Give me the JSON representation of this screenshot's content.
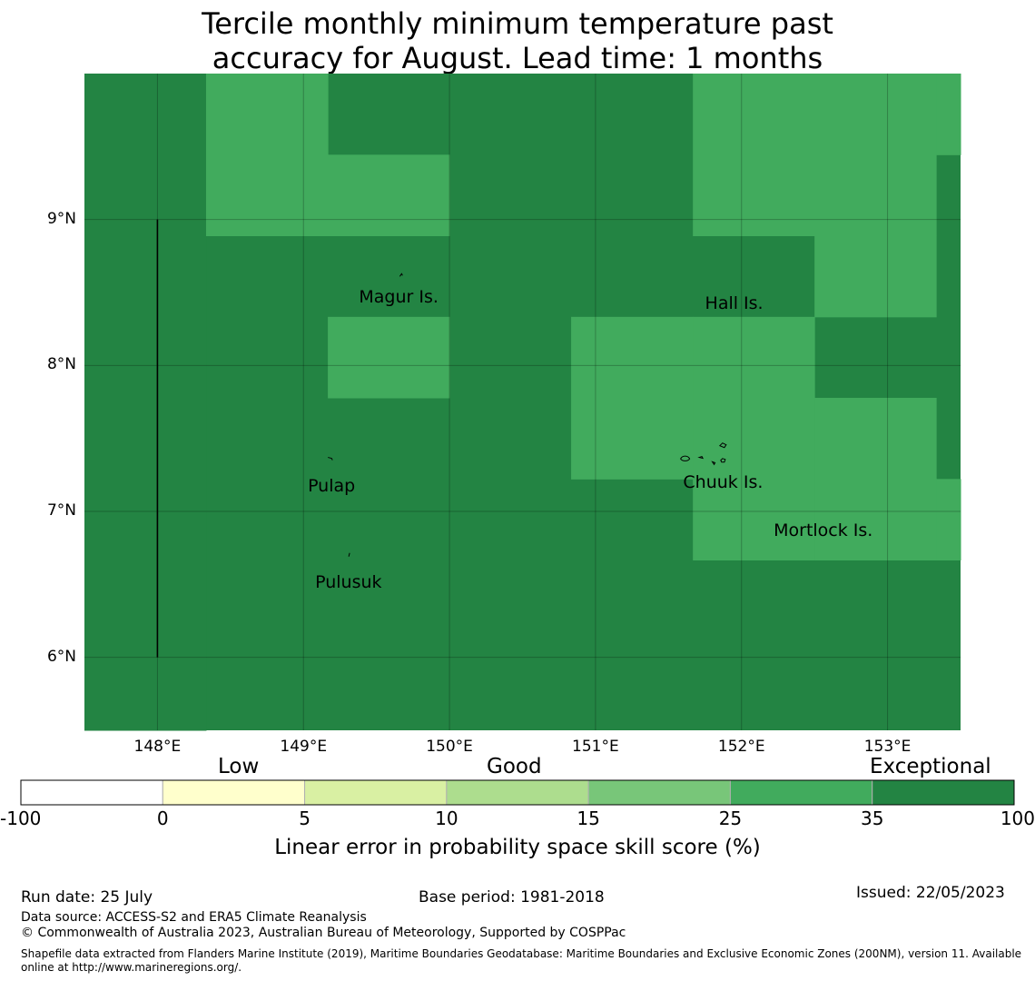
{
  "title": {
    "line1": "Tercile monthly minimum temperature past",
    "line2": "accuracy for August. Lead time: 1 months"
  },
  "map": {
    "lon_range": [
      147.5,
      153.5
    ],
    "lat_range": [
      5.5,
      10.0
    ],
    "x_ticks": [
      148,
      149,
      150,
      151,
      152,
      153
    ],
    "x_tick_labels": [
      "148°E",
      "149°E",
      "150°E",
      "151°E",
      "152°E",
      "153°E"
    ],
    "y_ticks": [
      9,
      8,
      7,
      6
    ],
    "y_tick_labels": [
      "9°N",
      "8°N",
      "7°N",
      "6°N"
    ],
    "grid_cells": [
      {
        "lon": [
          147.5,
          148.333
        ],
        "lat": [
          5.5,
          10.0
        ],
        "cls": "exceptional"
      },
      {
        "lon": [
          148.333,
          149.167
        ],
        "lat": [
          8.889,
          10.0
        ],
        "cls": "very-good"
      },
      {
        "lon": [
          149.167,
          150.0
        ],
        "lat": [
          8.889,
          9.444
        ],
        "cls": "very-good"
      },
      {
        "lon": [
          149.167,
          150.0
        ],
        "lat": [
          7.778,
          8.333
        ],
        "cls": "very-good"
      },
      {
        "lon": [
          150.833,
          151.667
        ],
        "lat": [
          7.222,
          8.333
        ],
        "cls": "very-good"
      },
      {
        "lon": [
          151.667,
          152.5
        ],
        "lat": [
          6.667,
          8.333
        ],
        "cls": "very-good"
      },
      {
        "lon": [
          151.667,
          153.333
        ],
        "lat": [
          8.889,
          10.0
        ],
        "cls": "very-good"
      },
      {
        "lon": [
          153.333,
          153.5
        ],
        "lat": [
          9.444,
          10.0
        ],
        "cls": "very-good"
      },
      {
        "lon": [
          152.5,
          153.333
        ],
        "lat": [
          8.333,
          8.889
        ],
        "cls": "very-good"
      },
      {
        "lon": [
          152.5,
          153.333
        ],
        "lat": [
          6.667,
          7.778
        ],
        "cls": "very-good"
      },
      {
        "lon": [
          153.333,
          153.5
        ],
        "lat": [
          6.667,
          7.222
        ],
        "cls": "very-good"
      }
    ],
    "meridian_line": {
      "lon": 148.0,
      "lat": [
        6.0,
        9.0
      ]
    },
    "places": [
      {
        "name": "Magur Is.",
        "lon": 149.38,
        "lat": 8.46
      },
      {
        "name": "Hall Is.",
        "lon": 151.75,
        "lat": 8.42
      },
      {
        "name": "Pulap",
        "lon": 149.03,
        "lat": 7.17
      },
      {
        "name": "Chuuk Is.",
        "lon": 151.6,
        "lat": 7.19
      },
      {
        "name": "Mortlock Is.",
        "lon": 152.22,
        "lat": 6.86
      },
      {
        "name": "Pulusuk",
        "lon": 149.08,
        "lat": 6.51
      }
    ]
  },
  "colorbar": {
    "boundaries": [
      "-100",
      "0",
      "5",
      "10",
      "15",
      "25",
      "35",
      "100"
    ],
    "colors": [
      "#ffffff",
      "#ffffcc",
      "#d9f0a3",
      "#addd8e",
      "#78c679",
      "#41ab5d",
      "#238443"
    ],
    "categories": [
      "Low",
      "Good",
      "Exceptional"
    ],
    "label": "Linear error in probability space skill score (%)"
  },
  "colors": {
    "exceptional": "#238443",
    "very-good": "#41ab5d"
  },
  "footer": {
    "run_date": "Run date: 25 July",
    "base_period": "Base period: 1981-2018",
    "issued": "Issued: 22/05/2023",
    "data_source": "Data source: ACCESS-S2 and ERA5 Climate Reanalysis",
    "copyright": "© Commonwealth of Australia 2023, Australian Bureau of Meteorology, Supported by COSPPac",
    "shapefile_line1": "Shapefile data extracted from Flanders Marine Institute (2019), Maritime Boundaries Geodatabase: Maritime Boundaries and Exclusive Economic Zones (200NM), version 11. Available",
    "shapefile_line2": "online at http://www.marineregions.org/."
  }
}
